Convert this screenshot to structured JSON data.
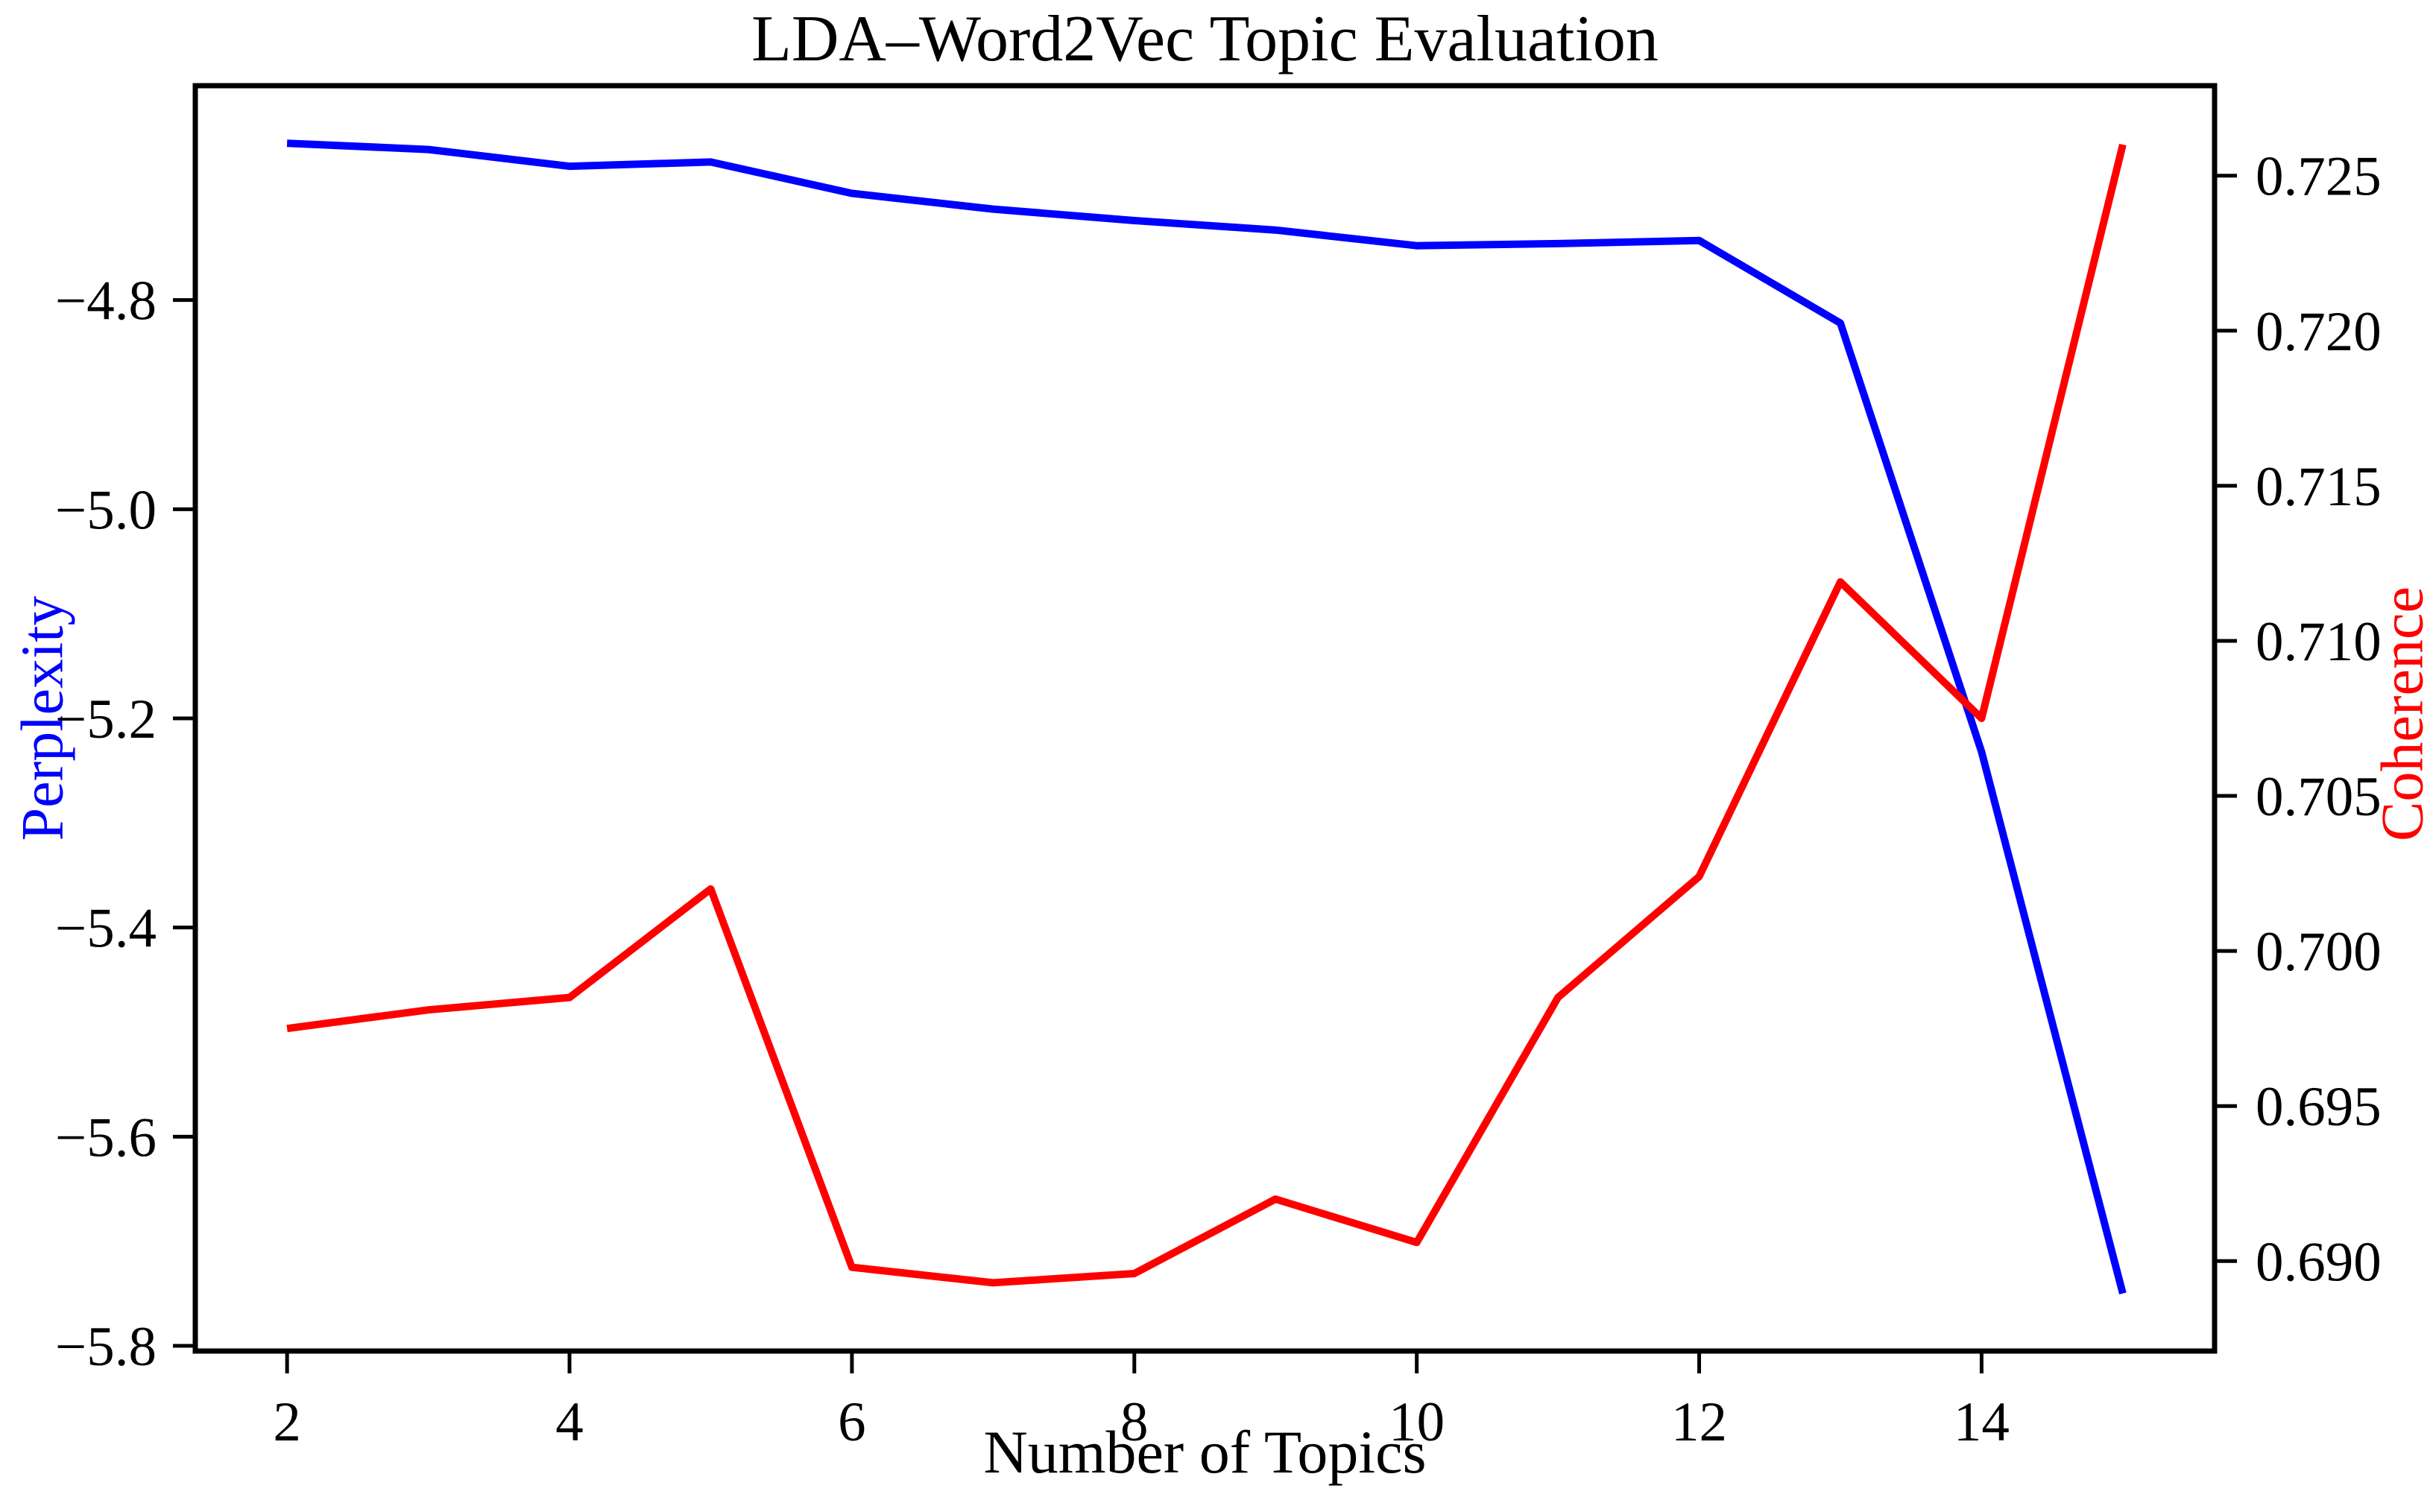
{
  "chart_data": {
    "type": "line",
    "title": "LDA–Word2Vec Topic Evaluation",
    "xlabel": "Number of Topics",
    "ylabel_left": "Perplexity",
    "ylabel_right": "Coherence",
    "grid": false,
    "legend_position": "none",
    "x": [
      2,
      3,
      4,
      5,
      6,
      7,
      8,
      9,
      10,
      11,
      12,
      13,
      14,
      15
    ],
    "series": [
      {
        "name": "Perplexity",
        "axis": "left",
        "color": "#0000FF",
        "values": [
          -4.65,
          -4.656,
          -4.672,
          -4.668,
          -4.698,
          -4.713,
          -4.724,
          -4.733,
          -4.748,
          -4.746,
          -4.743,
          -4.822,
          -5.232,
          -5.75
        ]
      },
      {
        "name": "Coherence",
        "axis": "right",
        "color": "#FF0000",
        "values": [
          0.6975,
          0.6981,
          0.6985,
          0.702,
          0.6898,
          0.6893,
          0.6896,
          0.692,
          0.6906,
          0.6985,
          0.7024,
          0.7119,
          0.7075,
          0.726
        ]
      }
    ],
    "xlim": [
      1.35,
      15.65
    ],
    "ylim_left": [
      -5.805,
      -4.595
    ],
    "ylim_right": [
      0.6871,
      0.7279
    ],
    "xtick_values": [
      2,
      4,
      6,
      8,
      10,
      12,
      14
    ],
    "xtick_labels": [
      "2",
      "4",
      "6",
      "8",
      "10",
      "12",
      "14"
    ],
    "ytick_left_values": [
      -5.8,
      -5.6,
      -5.4,
      -5.2,
      -5.0,
      -4.8
    ],
    "ytick_left_labels": [
      "−5.8",
      "−5.6",
      "−5.4",
      "−5.2",
      "−5.0",
      "−4.8"
    ],
    "ytick_right_values": [
      0.69,
      0.695,
      0.7,
      0.705,
      0.71,
      0.715,
      0.72,
      0.725
    ],
    "ytick_right_labels": [
      "0.690",
      "0.695",
      "0.700",
      "0.705",
      "0.710",
      "0.715",
      "0.720",
      "0.725"
    ]
  },
  "colors": {
    "axis": "#000000",
    "background": "#ffffff",
    "perplexity_accent": "#0000FF",
    "coherence_accent": "#FF0000"
  }
}
